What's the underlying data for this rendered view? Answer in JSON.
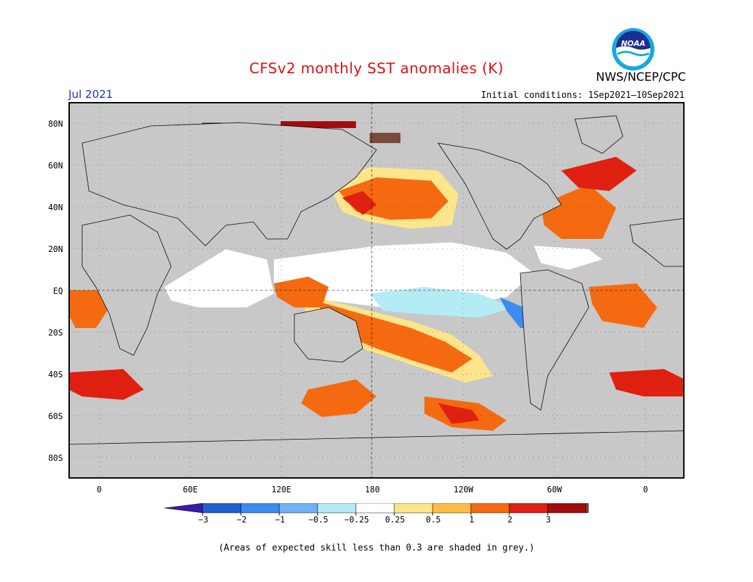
{
  "header": {
    "title": "CFSv2 monthly SST anomalies (K)",
    "agency": "NWS/NCEP/CPC",
    "logo_text": "NOAA",
    "month": "Jul 2021",
    "initial_conditions": "Initial conditions: 1Sep2021–10Sep2021"
  },
  "map": {
    "lat_labels": [
      "80N",
      "60N",
      "40N",
      "20N",
      "EQ",
      "20S",
      "40S",
      "60S",
      "80S"
    ],
    "lon_labels": [
      "0",
      "60E",
      "120E",
      "180",
      "120W",
      "60W",
      "0"
    ],
    "land_color": "#c8c8c8",
    "ocean_neutral_color": "#ffffff"
  },
  "colorbar": {
    "colors": [
      "#3a1aa6",
      "#1f5fd0",
      "#3b8cf0",
      "#6fb2f5",
      "#b4ecf5",
      "#ffffff",
      "#fde58b",
      "#fdbd45",
      "#f56a10",
      "#e02010",
      "#a30d0d",
      "#7a4a3a"
    ],
    "labels": [
      "−3",
      "−2",
      "−1",
      "−0.5",
      "−0.25",
      "0.25",
      "0.5",
      "1",
      "2",
      "3"
    ]
  },
  "footnote": "(Areas of expected skill less than 0.3 are shaded in grey.)"
}
